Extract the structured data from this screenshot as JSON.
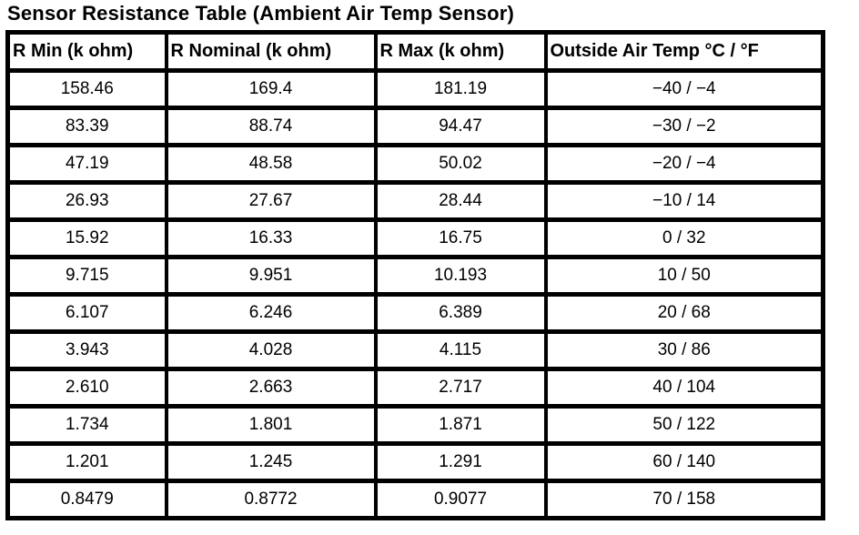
{
  "title": "Sensor Resistance Table (Ambient Air Temp Sensor)",
  "table": {
    "columns": [
      "R Min (k ohm)",
      "R Nominal (k ohm)",
      "R Max (k ohm)",
      "Outside Air Temp °C / °F"
    ],
    "rows": [
      [
        "158.46",
        "169.4",
        "181.19",
        "−40 / −4"
      ],
      [
        "83.39",
        "88.74",
        "94.47",
        "−30 / −2"
      ],
      [
        "47.19",
        "48.58",
        "50.02",
        "−20 / −4"
      ],
      [
        "26.93",
        "27.67",
        "28.44",
        "−10 / 14"
      ],
      [
        "15.92",
        "16.33",
        "16.75",
        "0 / 32"
      ],
      [
        "9.715",
        "9.951",
        "10.193",
        "10 / 50"
      ],
      [
        "6.107",
        "6.246",
        "6.389",
        "20 / 68"
      ],
      [
        "3.943",
        "4.028",
        "4.115",
        "30 / 86"
      ],
      [
        "2.610",
        "2.663",
        "2.717",
        "40 / 104"
      ],
      [
        "1.734",
        "1.801",
        "1.871",
        "50 / 122"
      ],
      [
        "1.201",
        "1.245",
        "1.291",
        "60 / 140"
      ],
      [
        "0.8479",
        "0.8772",
        "0.9077",
        "70 / 158"
      ]
    ],
    "colors": {
      "border": "#000000",
      "text": "#000000",
      "background": "#ffffff"
    }
  }
}
